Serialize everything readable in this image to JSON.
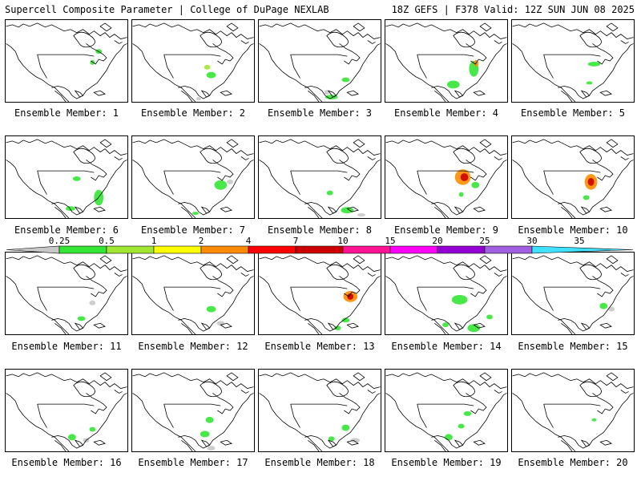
{
  "header": {
    "title": "Supercell Composite Parameter | College of DuPage NEXLAB",
    "run_info": "18Z GEFS | F378 Valid: 12Z SUN JUN 08 2025"
  },
  "colorbar": {
    "ticks": [
      "0.25",
      "0.5",
      "1",
      "2",
      "4",
      "7",
      "10",
      "15",
      "20",
      "25",
      "30",
      "35"
    ],
    "colors": [
      "#c8c8c8",
      "#33e633",
      "#a0e633",
      "#ffff00",
      "#ff8c00",
      "#ff0000",
      "#cc0000",
      "#ff1493",
      "#ff00ff",
      "#9400d3",
      "#a060e0",
      "#40e0ff"
    ]
  },
  "members": [
    {
      "label": "Ensemble Member: 1"
    },
    {
      "label": "Ensemble Member: 2"
    },
    {
      "label": "Ensemble Member: 3"
    },
    {
      "label": "Ensemble Member: 4"
    },
    {
      "label": "Ensemble Member: 5"
    },
    {
      "label": "Ensemble Member: 6"
    },
    {
      "label": "Ensemble Member: 7"
    },
    {
      "label": "Ensemble Member: 8"
    },
    {
      "label": "Ensemble Member: 9"
    },
    {
      "label": "Ensemble Member: 10"
    },
    {
      "label": "Ensemble Member: 11"
    },
    {
      "label": "Ensemble Member: 12"
    },
    {
      "label": "Ensemble Member: 13"
    },
    {
      "label": "Ensemble Member: 14"
    },
    {
      "label": "Ensemble Member: 15"
    },
    {
      "label": "Ensemble Member: 16"
    },
    {
      "label": "Ensemble Member: 17"
    },
    {
      "label": "Ensemble Member: 18"
    },
    {
      "label": "Ensemble Member: 19"
    },
    {
      "label": "Ensemble Member: 20"
    }
  ]
}
